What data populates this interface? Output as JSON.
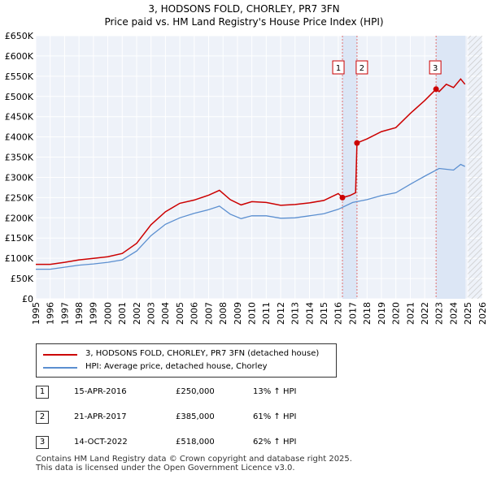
{
  "chart_data": {
    "type": "line",
    "title": "3, HODSONS FOLD, CHORLEY, PR7 3FN",
    "subtitle": "Price paid vs. HM Land Registry's House Price Index (HPI)",
    "ylim": [
      0,
      650000
    ],
    "xlim": [
      1995,
      2026
    ],
    "y_ticks": [
      0,
      50000,
      100000,
      150000,
      200000,
      250000,
      300000,
      350000,
      400000,
      450000,
      500000,
      550000,
      600000,
      650000
    ],
    "y_tick_labels": [
      "£0",
      "£50K",
      "£100K",
      "£150K",
      "£200K",
      "£250K",
      "£300K",
      "£350K",
      "£400K",
      "£450K",
      "£500K",
      "£550K",
      "£600K",
      "£650K"
    ],
    "x_ticks": [
      1995,
      1996,
      1997,
      1998,
      1999,
      2000,
      2001,
      2002,
      2003,
      2004,
      2005,
      2006,
      2007,
      2008,
      2009,
      2010,
      2011,
      2012,
      2013,
      2014,
      2015,
      2016,
      2017,
      2018,
      2019,
      2020,
      2021,
      2022,
      2023,
      2024,
      2025,
      2026
    ],
    "x_tick_labels": [
      "1995",
      "1996",
      "1997",
      "1998",
      "1999",
      "2000",
      "2001",
      "2002",
      "2003",
      "2004",
      "2005",
      "2006",
      "2007",
      "2008",
      "2009",
      "2010",
      "2011",
      "2012",
      "2013",
      "2014",
      "2015",
      "2016",
      "2017",
      "2018",
      "2019",
      "2020",
      "2021",
      "2022",
      "2023",
      "2024",
      "2025",
      "2026"
    ],
    "grid": true,
    "series": [
      {
        "name": "3, HODSONS FOLD, CHORLEY, PR7 3FN (detached house)",
        "color": "#cc0000",
        "x": [
          1995,
          1996,
          1997,
          1998,
          1999,
          2000,
          2001,
          2002,
          2003,
          2004,
          2005,
          2006,
          2007,
          2007.75,
          2008.5,
          2009.25,
          2010,
          2011,
          2012,
          2013,
          2014,
          2015,
          2016,
          2016.29,
          2016.8,
          2017.2,
          2017.3,
          2018,
          2019,
          2020,
          2021,
          2022,
          2022.79,
          2023,
          2023.5,
          2024,
          2024.5,
          2024.8
        ],
        "y": [
          85000,
          85000,
          90000,
          96000,
          100000,
          104000,
          112000,
          137000,
          183000,
          215000,
          236000,
          244000,
          256000,
          268000,
          245000,
          232000,
          240000,
          238000,
          231000,
          233000,
          237000,
          243000,
          260000,
          250000,
          255000,
          262000,
          385000,
          395000,
          413000,
          423000,
          458000,
          490000,
          518000,
          512000,
          530000,
          522000,
          543000,
          530000
        ]
      },
      {
        "name": "HPI: Average price, detached house, Chorley",
        "color": "#5b8fd0",
        "x": [
          1995,
          1996,
          1997,
          1998,
          1999,
          2000,
          2001,
          2002,
          2003,
          2004,
          2005,
          2006,
          2007,
          2007.75,
          2008.5,
          2009.25,
          2010,
          2011,
          2012,
          2013,
          2014,
          2015,
          2016,
          2017,
          2018,
          2019,
          2020,
          2021,
          2022,
          2023,
          2024,
          2024.5,
          2024.8
        ],
        "y": [
          73000,
          73000,
          78000,
          83000,
          86000,
          90000,
          96000,
          118000,
          156000,
          184000,
          200000,
          211000,
          220000,
          229000,
          209000,
          198000,
          205000,
          205000,
          199000,
          200000,
          205000,
          210000,
          221000,
          238000,
          245000,
          255000,
          262000,
          283000,
          303000,
          322000,
          318000,
          332000,
          327000
        ]
      }
    ],
    "sales": [
      {
        "label": "1",
        "x": 2016.29,
        "y": 250000
      },
      {
        "label": "2",
        "x": 2017.3,
        "y": 385000
      },
      {
        "label": "3",
        "x": 2022.79,
        "y": 518000
      }
    ],
    "shaded_ranges": [
      [
        2016.29,
        2017.3
      ],
      [
        2022.79,
        2024.83
      ]
    ],
    "hatch_from": 2025
  },
  "legend": {
    "property_label": "3, HODSONS FOLD, CHORLEY, PR7 3FN (detached house)",
    "hpi_label": "HPI: Average price, detached house, Chorley",
    "property_color": "#cc0000",
    "hpi_color": "#5b8fd0"
  },
  "transactions": [
    {
      "num": "1",
      "date": "15-APR-2016",
      "price": "£250,000",
      "hpi": "13% ↑ HPI"
    },
    {
      "num": "2",
      "date": "21-APR-2017",
      "price": "£385,000",
      "hpi": "61% ↑ HPI"
    },
    {
      "num": "3",
      "date": "14-OCT-2022",
      "price": "£518,000",
      "hpi": "62% ↑ HPI"
    }
  ],
  "footer": {
    "line1": "Contains HM Land Registry data © Crown copyright and database right 2025.",
    "line2": "This data is licensed under the Open Government Licence v3.0."
  }
}
